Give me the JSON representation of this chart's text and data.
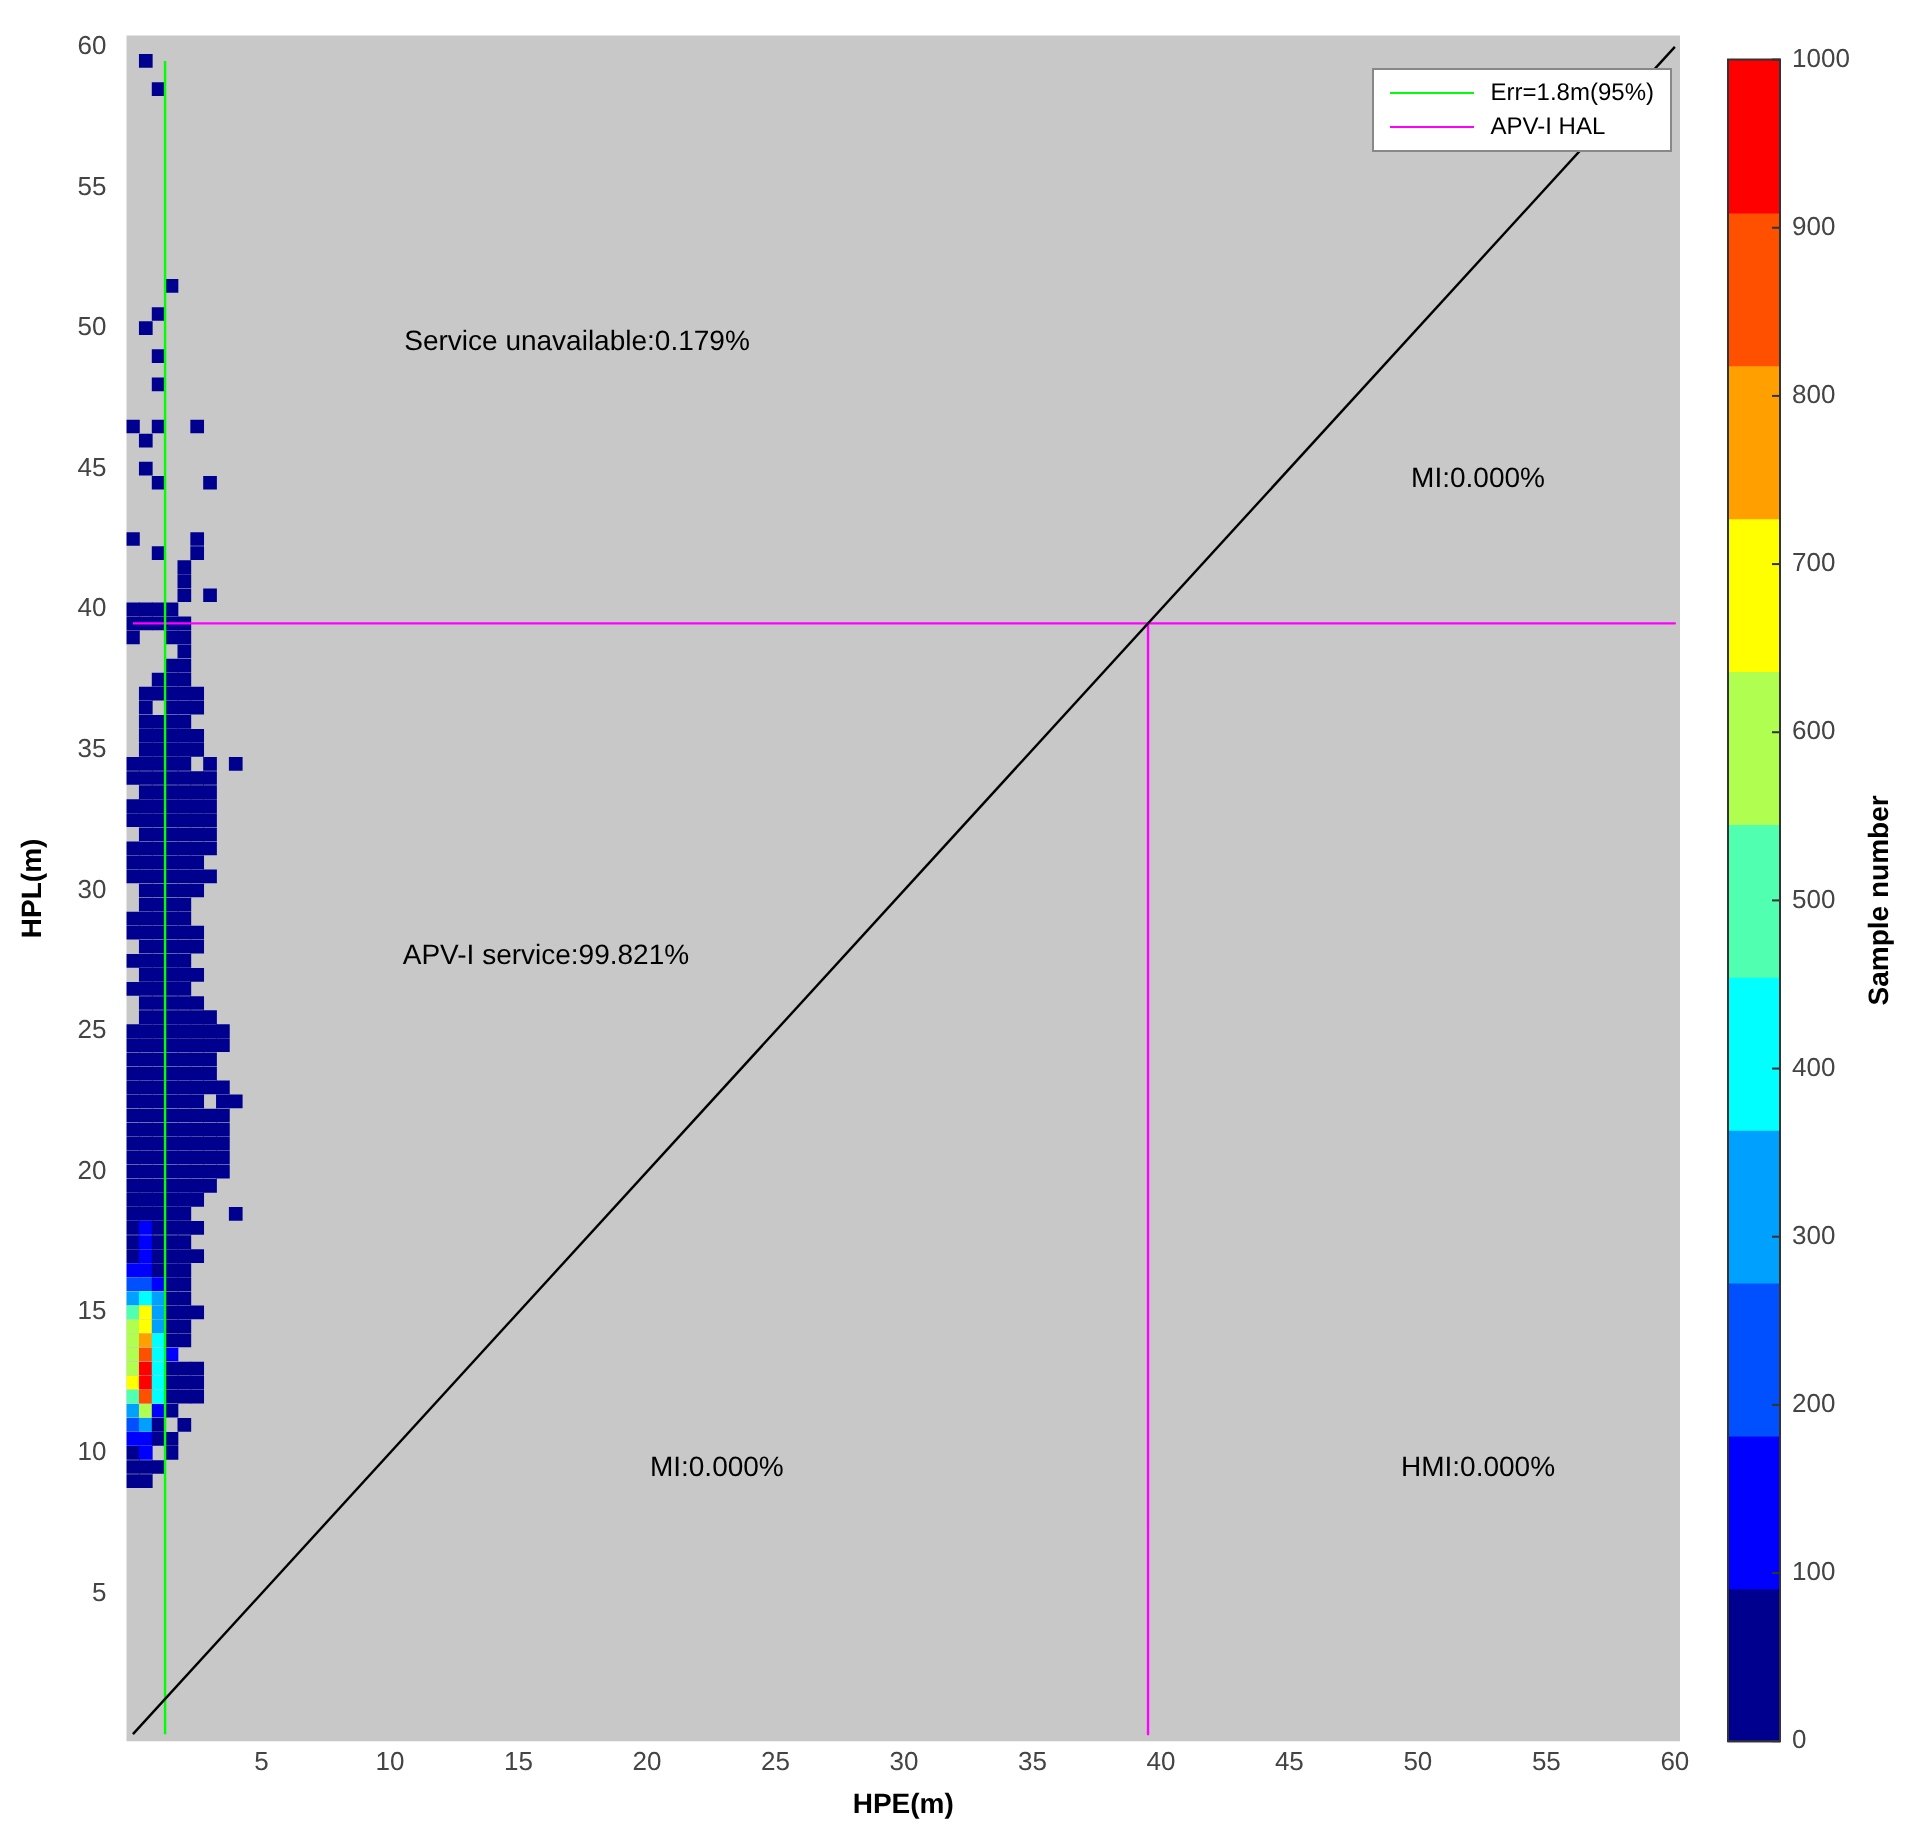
{
  "chart_data": {
    "type": "scatter",
    "xlabel": "HPE(m)",
    "ylabel": "HPL(m)",
    "clabel": "Sample number",
    "clim": [
      0,
      1000
    ],
    "cticks": [
      0,
      100,
      200,
      300,
      400,
      500,
      600,
      700,
      800,
      900,
      1000
    ],
    "xlim": [
      -0.25,
      60.2
    ],
    "ylim": [
      -0.25,
      60.4
    ],
    "xticks": [
      5,
      10,
      15,
      20,
      25,
      30,
      35,
      40,
      45,
      50,
      55,
      60
    ],
    "yticks": [
      5,
      10,
      15,
      20,
      25,
      30,
      35,
      40,
      45,
      50,
      55,
      60
    ],
    "grid": false,
    "legend": "top right",
    "marker": "square",
    "annotations": [
      "Service unavailable:0.179%",
      "MI:0.000%",
      "APV-I service:99.821%",
      "MI:0.000%",
      "HMI:0.000%"
    ],
    "series": [
      {
        "type": "line",
        "marker": "none",
        "color": "#000000",
        "x": [
          0,
          60
        ],
        "values": [
          0,
          60
        ]
      },
      {
        "type": "line",
        "marker": "none",
        "name": "Err=1.8m(95%)",
        "color": "#00ff00",
        "x": [
          1.25,
          1.25
        ],
        "values": [
          0,
          59.5
        ]
      },
      {
        "type": "line",
        "marker": "none",
        "name": "APV-I HAL",
        "color": "#ff00ff",
        "x": [
          0,
          60,
          39.5,
          39.5
        ],
        "values": [
          39.5,
          39.5,
          39.5,
          0
        ]
      },
      {
        "type": "scatter",
        "color": "#00008f",
        "x": [
          0,
          0.5
        ],
        "values": [
          9,
          9
        ]
      },
      {
        "type": "scatter",
        "color": "#00008f",
        "x": [
          0,
          0.5,
          1
        ],
        "values": [
          9.5,
          9.5,
          9.5
        ]
      },
      {
        "type": "scatter",
        "colors": [
          "#00008f",
          "#0000ff",
          "#00008f"
        ],
        "x": [
          0,
          0.5,
          1.5
        ],
        "values": [
          10,
          10,
          10
        ]
      },
      {
        "type": "scatter",
        "colors": [
          "#0000ff",
          "#0000ff",
          "#00008f",
          "#00008f"
        ],
        "x": [
          0,
          0.5,
          1,
          1.5
        ],
        "values": [
          10.5,
          10.5,
          10.5,
          10.5
        ]
      },
      {
        "type": "scatter",
        "colors": [
          "#0050ff",
          "#00a0ff",
          "#00008f",
          "#00008f"
        ],
        "x": [
          0,
          0.5,
          1,
          2
        ],
        "values": [
          11,
          11,
          11,
          11
        ]
      },
      {
        "type": "scatter",
        "colors": [
          "#00a0ff",
          "#b0ff50",
          "#0000ff",
          "#00008f"
        ],
        "x": [
          0,
          0.5,
          1,
          1.5
        ],
        "values": [
          11.5,
          11.5,
          11.5,
          11.5
        ]
      },
      {
        "type": "scatter",
        "colors": [
          "#50ffb0",
          "#ff5000",
          "#00ffff",
          "#00008f",
          "#00008f",
          "#00008f"
        ],
        "x": [
          0,
          0.5,
          1,
          1.5,
          2,
          2.5
        ],
        "values": [
          12,
          12,
          12,
          12,
          12,
          12
        ]
      },
      {
        "type": "scatter",
        "colors": [
          "#ffff00",
          "#ff0000",
          "#00ffff",
          "#00008f",
          "#00008f",
          "#00008f"
        ],
        "x": [
          0,
          0.5,
          1,
          1.5,
          2,
          2.5
        ],
        "values": [
          12.5,
          12.5,
          12.5,
          12.5,
          12.5,
          12.5
        ]
      },
      {
        "type": "scatter",
        "colors": [
          "#b0ff50",
          "#ff0000",
          "#00ffff",
          "#00008f",
          "#00008f",
          "#00008f"
        ],
        "x": [
          0,
          0.5,
          1,
          1.5,
          2,
          2.5
        ],
        "values": [
          13,
          13,
          13,
          13,
          13,
          13
        ]
      },
      {
        "type": "scatter",
        "colors": [
          "#b0ff50",
          "#ff5000",
          "#00ffff",
          "#0000ff"
        ],
        "x": [
          0,
          0.5,
          1,
          1.5
        ],
        "values": [
          13.5,
          13.5,
          13.5,
          13.5
        ]
      },
      {
        "type": "scatter",
        "colors": [
          "#b0ff50",
          "#ffa000",
          "#00ffff",
          "#00008f",
          "#00008f"
        ],
        "x": [
          0,
          0.5,
          1,
          1.5,
          2
        ],
        "values": [
          14,
          14,
          14,
          14,
          14
        ]
      },
      {
        "type": "scatter",
        "colors": [
          "#b0ff50",
          "#ffff00",
          "#00a0ff",
          "#00008f",
          "#00008f"
        ],
        "x": [
          0,
          0.5,
          1,
          1.5,
          2
        ],
        "values": [
          14.5,
          14.5,
          14.5,
          14.5,
          14.5
        ]
      },
      {
        "type": "scatter",
        "colors": [
          "#50ffb0",
          "#ffff00",
          "#00a0ff",
          "#00008f",
          "#00008f",
          "#00008f"
        ],
        "x": [
          0,
          0.5,
          1,
          1.5,
          2,
          2.5
        ],
        "values": [
          15,
          15,
          15,
          15,
          15,
          15
        ]
      },
      {
        "type": "scatter",
        "colors": [
          "#00a0ff",
          "#00ffff",
          "#00a0ff",
          "#00008f",
          "#00008f"
        ],
        "x": [
          0,
          0.5,
          1,
          1.5,
          2
        ],
        "values": [
          15.5,
          15.5,
          15.5,
          15.5,
          15.5
        ]
      },
      {
        "type": "scatter",
        "colors": [
          "#0050ff",
          "#0050ff",
          "#0000ff",
          "#00008f",
          "#00008f"
        ],
        "x": [
          0,
          0.5,
          1,
          1.5,
          2
        ],
        "values": [
          16,
          16,
          16,
          16,
          16
        ]
      },
      {
        "type": "scatter",
        "colors": [
          "#0000ff",
          "#0000ff",
          "#00008f",
          "#00008f",
          "#00008f"
        ],
        "x": [
          0,
          0.5,
          1,
          1.5,
          2
        ],
        "values": [
          16.5,
          16.5,
          16.5,
          16.5,
          16.5
        ]
      },
      {
        "type": "scatter",
        "colors": [
          "#00008f",
          "#0000ff",
          "#00008f",
          "#00008f",
          "#00008f",
          "#00008f"
        ],
        "x": [
          0,
          0.5,
          1,
          1.5,
          2,
          2.5
        ],
        "values": [
          17,
          17,
          17,
          17,
          17,
          17
        ]
      },
      {
        "type": "scatter",
        "colors": [
          "#00008f",
          "#0000ff",
          "#00008f",
          "#00008f",
          "#00008f"
        ],
        "x": [
          0,
          0.5,
          1,
          1.5,
          2
        ],
        "values": [
          17.5,
          17.5,
          17.5,
          17.5,
          17.5
        ]
      },
      {
        "type": "scatter",
        "colors": [
          "#00008f",
          "#0000ff",
          "#00008f",
          "#00008f",
          "#00008f",
          "#00008f"
        ],
        "x": [
          0,
          0.5,
          1,
          1.5,
          2,
          2.5
        ],
        "values": [
          18,
          18,
          18,
          18,
          18,
          18
        ]
      },
      {
        "type": "scatter",
        "color": "#00008f",
        "x": [
          0,
          0.5,
          1,
          1.5,
          2,
          4
        ],
        "values": [
          18.5,
          18.5,
          18.5,
          18.5,
          18.5,
          18.5
        ]
      },
      {
        "type": "scatter",
        "color": "#00008f",
        "x": [
          0,
          0.5,
          1,
          1.5,
          2,
          2.5
        ],
        "values": [
          19,
          19,
          19,
          19,
          19,
          19
        ]
      },
      {
        "type": "scatter",
        "color": "#00008f",
        "x": [
          0,
          0.5,
          1,
          1.5,
          2,
          2.5,
          3
        ],
        "values": [
          19.5,
          19.5,
          19.5,
          19.5,
          19.5,
          19.5,
          19.5
        ]
      },
      {
        "type": "scatter",
        "color": "#00008f",
        "x": [
          0,
          0.5,
          1,
          1.5,
          2,
          2.5,
          3,
          3.5
        ],
        "values": [
          20,
          20,
          20,
          20,
          20,
          20,
          20,
          20
        ]
      },
      {
        "type": "scatter",
        "color": "#00008f",
        "x": [
          0,
          0.5,
          1,
          1.5,
          2,
          2.5,
          3,
          3.5
        ],
        "values": [
          20.5,
          20.5,
          20.5,
          20.5,
          20.5,
          20.5,
          20.5,
          20.5
        ]
      },
      {
        "type": "scatter",
        "color": "#00008f",
        "x": [
          0,
          0.5,
          1,
          1.5,
          2,
          2.5,
          3,
          3.5
        ],
        "values": [
          21,
          21,
          21,
          21,
          21,
          21,
          21,
          21
        ]
      },
      {
        "type": "scatter",
        "color": "#00008f",
        "x": [
          0,
          0.5,
          1,
          1.5,
          2,
          2.5,
          3,
          3.5
        ],
        "values": [
          21.5,
          21.5,
          21.5,
          21.5,
          21.5,
          21.5,
          21.5,
          21.5
        ]
      },
      {
        "type": "scatter",
        "color": "#00008f",
        "x": [
          0,
          0.5,
          1,
          1.5,
          2,
          2.5,
          3,
          3.5
        ],
        "values": [
          22,
          22,
          22,
          22,
          22,
          22,
          22,
          22
        ]
      },
      {
        "type": "scatter",
        "color": "#00008f",
        "x": [
          0,
          0.5,
          1,
          1.5,
          2,
          2.5,
          3.5,
          4
        ],
        "values": [
          22.5,
          22.5,
          22.5,
          22.5,
          22.5,
          22.5,
          22.5,
          22.5
        ]
      },
      {
        "type": "scatter",
        "color": "#00008f",
        "x": [
          0,
          0.5,
          1,
          1.5,
          2,
          2.5,
          3,
          3.5
        ],
        "values": [
          23,
          23,
          23,
          23,
          23,
          23,
          23,
          23
        ]
      },
      {
        "type": "scatter",
        "color": "#00008f",
        "x": [
          0,
          0.5,
          1,
          1.5,
          2,
          2.5,
          3
        ],
        "values": [
          23.5,
          23.5,
          23.5,
          23.5,
          23.5,
          23.5,
          23.5
        ]
      },
      {
        "type": "scatter",
        "color": "#00008f",
        "x": [
          0,
          0.5,
          1,
          1.5,
          2,
          2.5,
          3
        ],
        "values": [
          24,
          24,
          24,
          24,
          24,
          24,
          24
        ]
      },
      {
        "type": "scatter",
        "color": "#00008f",
        "x": [
          0,
          0.5,
          1,
          1.5,
          2,
          2.5,
          3,
          3.5
        ],
        "values": [
          24.5,
          24.5,
          24.5,
          24.5,
          24.5,
          24.5,
          24.5,
          24.5
        ]
      },
      {
        "type": "scatter",
        "color": "#00008f",
        "x": [
          0,
          0.5,
          1,
          1.5,
          2,
          2.5,
          3,
          3.5
        ],
        "values": [
          25,
          25,
          25,
          25,
          25,
          25,
          25,
          25
        ]
      },
      {
        "type": "scatter",
        "color": "#00008f",
        "x": [
          0.5,
          1,
          1.5,
          2,
          2.5,
          3
        ],
        "values": [
          25.5,
          25.5,
          25.5,
          25.5,
          25.5,
          25.5
        ]
      },
      {
        "type": "scatter",
        "color": "#00008f",
        "x": [
          0.5,
          1,
          1.5,
          2,
          2.5
        ],
        "values": [
          26,
          26,
          26,
          26,
          26
        ]
      },
      {
        "type": "scatter",
        "color": "#00008f",
        "x": [
          0,
          0.5,
          1,
          1.5,
          2
        ],
        "values": [
          26.5,
          26.5,
          26.5,
          26.5,
          26.5
        ]
      },
      {
        "type": "scatter",
        "color": "#00008f",
        "x": [
          0.5,
          1,
          1.5,
          2,
          2.5
        ],
        "values": [
          27,
          27,
          27,
          27,
          27
        ]
      },
      {
        "type": "scatter",
        "color": "#00008f",
        "x": [
          0,
          0.5,
          1,
          1.5,
          2
        ],
        "values": [
          27.5,
          27.5,
          27.5,
          27.5,
          27.5
        ]
      },
      {
        "type": "scatter",
        "color": "#00008f",
        "x": [
          0.5,
          1,
          1.5,
          2,
          2.5
        ],
        "values": [
          28,
          28,
          28,
          28,
          28
        ]
      },
      {
        "type": "scatter",
        "color": "#00008f",
        "x": [
          0,
          0.5,
          1,
          1.5,
          2,
          2.5
        ],
        "values": [
          28.5,
          28.5,
          28.5,
          28.5,
          28.5,
          28.5
        ]
      },
      {
        "type": "scatter",
        "color": "#00008f",
        "x": [
          0,
          0.5,
          1,
          1.5,
          2
        ],
        "values": [
          29,
          29,
          29,
          29,
          29
        ]
      },
      {
        "type": "scatter",
        "color": "#00008f",
        "x": [
          0.5,
          1,
          1.5,
          2
        ],
        "values": [
          29.5,
          29.5,
          29.5,
          29.5
        ]
      },
      {
        "type": "scatter",
        "color": "#00008f",
        "x": [
          0.5,
          1,
          1.5,
          2,
          2.5
        ],
        "values": [
          30,
          30,
          30,
          30,
          30
        ]
      },
      {
        "type": "scatter",
        "color": "#00008f",
        "x": [
          0,
          0.5,
          1,
          1.5,
          2,
          2.5,
          3
        ],
        "values": [
          30.5,
          30.5,
          30.5,
          30.5,
          30.5,
          30.5,
          30.5
        ]
      },
      {
        "type": "scatter",
        "color": "#00008f",
        "x": [
          0,
          0.5,
          1,
          1.5,
          2,
          2.5
        ],
        "values": [
          31,
          31,
          31,
          31,
          31,
          31
        ]
      },
      {
        "type": "scatter",
        "color": "#00008f",
        "x": [
          0,
          0.5,
          1,
          1.5,
          2,
          2.5,
          3
        ],
        "values": [
          31.5,
          31.5,
          31.5,
          31.5,
          31.5,
          31.5,
          31.5
        ]
      },
      {
        "type": "scatter",
        "color": "#00008f",
        "x": [
          0.5,
          1,
          1.5,
          2,
          2.5,
          3
        ],
        "values": [
          32,
          32,
          32,
          32,
          32,
          32
        ]
      },
      {
        "type": "scatter",
        "color": "#00008f",
        "x": [
          0,
          0.5,
          1,
          1.5,
          2,
          2.5,
          3
        ],
        "values": [
          32.5,
          32.5,
          32.5,
          32.5,
          32.5,
          32.5,
          32.5
        ]
      },
      {
        "type": "scatter",
        "color": "#00008f",
        "x": [
          0,
          0.5,
          1,
          1.5,
          2,
          2.5,
          3
        ],
        "values": [
          33,
          33,
          33,
          33,
          33,
          33,
          33
        ]
      },
      {
        "type": "scatter",
        "color": "#00008f",
        "x": [
          0.5,
          1,
          1.5,
          2,
          2.5,
          3
        ],
        "values": [
          33.5,
          33.5,
          33.5,
          33.5,
          33.5,
          33.5
        ]
      },
      {
        "type": "scatter",
        "color": "#00008f",
        "x": [
          0,
          0.5,
          1,
          1.5,
          2,
          2.5,
          3
        ],
        "values": [
          34,
          34,
          34,
          34,
          34,
          34,
          34
        ]
      },
      {
        "type": "scatter",
        "color": "#00008f",
        "x": [
          0,
          0.5,
          1,
          1.5,
          2,
          3,
          4
        ],
        "values": [
          34.5,
          34.5,
          34.5,
          34.5,
          34.5,
          34.5,
          34.5
        ]
      },
      {
        "type": "scatter",
        "color": "#00008f",
        "x": [
          0.5,
          1,
          1.5,
          2,
          2.5
        ],
        "values": [
          35,
          35,
          35,
          35,
          35
        ]
      },
      {
        "type": "scatter",
        "color": "#00008f",
        "x": [
          0.5,
          1,
          1.5,
          2,
          2.5
        ],
        "values": [
          35.5,
          35.5,
          35.5,
          35.5,
          35.5
        ]
      },
      {
        "type": "scatter",
        "color": "#00008f",
        "x": [
          0.5,
          1,
          1.5,
          2
        ],
        "values": [
          36,
          36,
          36,
          36
        ]
      },
      {
        "type": "scatter",
        "color": "#00008f",
        "x": [
          0.5,
          1.5,
          2,
          2.5
        ],
        "values": [
          36.5,
          36.5,
          36.5,
          36.5
        ]
      },
      {
        "type": "scatter",
        "color": "#00008f",
        "x": [
          0.5,
          1,
          1.5,
          2,
          2.5
        ],
        "values": [
          37,
          37,
          37,
          37,
          37
        ]
      },
      {
        "type": "scatter",
        "color": "#00008f",
        "x": [
          1,
          1.5,
          2
        ],
        "values": [
          37.5,
          37.5,
          37.5
        ]
      },
      {
        "type": "scatter",
        "color": "#00008f",
        "x": [
          1.5,
          2
        ],
        "values": [
          38,
          38
        ]
      },
      {
        "type": "scatter",
        "color": "#00008f",
        "x": [
          2
        ],
        "values": [
          38.5
        ]
      },
      {
        "type": "scatter",
        "color": "#00008f",
        "x": [
          0,
          1.5,
          2
        ],
        "values": [
          39,
          39,
          39
        ]
      },
      {
        "type": "scatter",
        "color": "#00008f",
        "x": [
          0,
          0.5,
          1,
          1.5,
          2
        ],
        "values": [
          39.5,
          39.5,
          39.5,
          39.5,
          39.5
        ]
      },
      {
        "type": "scatter",
        "color": "#00008f",
        "x": [
          0,
          0.5,
          1,
          1.5
        ],
        "values": [
          40,
          40,
          40,
          40
        ]
      },
      {
        "type": "scatter",
        "color": "#00008f",
        "x": [
          2,
          3
        ],
        "values": [
          40.5,
          40.5
        ]
      },
      {
        "type": "scatter",
        "color": "#00008f",
        "x": [
          2
        ],
        "values": [
          41
        ]
      },
      {
        "type": "scatter",
        "color": "#00008f",
        "x": [
          2
        ],
        "values": [
          41.5
        ]
      },
      {
        "type": "scatter",
        "color": "#00008f",
        "x": [
          1,
          2.5
        ],
        "values": [
          42,
          42
        ]
      },
      {
        "type": "scatter",
        "color": "#00008f",
        "x": [
          0,
          2.5
        ],
        "values": [
          42.5,
          42.5
        ]
      },
      {
        "type": "scatter",
        "color": "#00008f",
        "x": [
          1,
          3
        ],
        "values": [
          44.5,
          44.5
        ]
      },
      {
        "type": "scatter",
        "color": "#00008f",
        "x": [
          0.5
        ],
        "values": [
          45
        ]
      },
      {
        "type": "scatter",
        "color": "#00008f",
        "x": [
          0.5
        ],
        "values": [
          46
        ]
      },
      {
        "type": "scatter",
        "color": "#00008f",
        "x": [
          0,
          1,
          2.5
        ],
        "values": [
          46.5,
          46.5,
          46.5
        ]
      },
      {
        "type": "scatter",
        "color": "#00008f",
        "x": [
          1,
          1,
          0.5,
          1,
          1.5,
          1,
          0.5
        ],
        "values": [
          48,
          49,
          50,
          50.5,
          51.5,
          58.5,
          59.5
        ]
      }
    ]
  }
}
